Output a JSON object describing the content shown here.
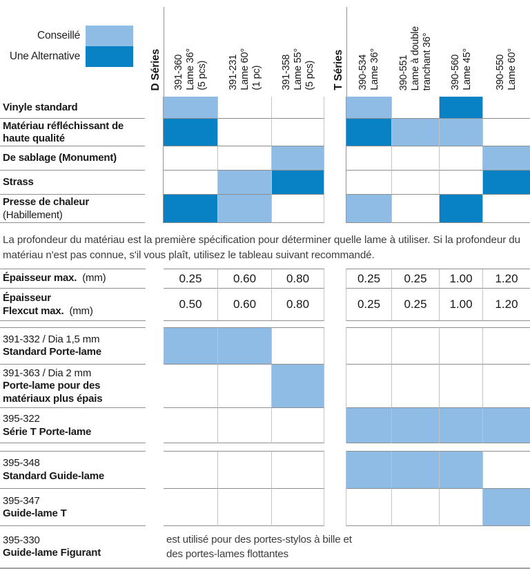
{
  "colors": {
    "recommended": "#8ebce4",
    "alternative": "#0981c5"
  },
  "legend": {
    "recommended_label": "Conseillé",
    "alternative_label": "Une Alternative"
  },
  "columns": {
    "d_series_label": "D Séries",
    "t_series_label": "T Séries",
    "blades": [
      {
        "label": "391-360\nLame 36°\n(5 pcs)"
      },
      {
        "label": "391-231\nLame 60°\n(1 pc)"
      },
      {
        "label": "391-358\nLame 55°\n(5 pcs)"
      },
      {
        "label": "390-534\nLame 36°"
      },
      {
        "label": "390-551\nLame à double\ntranchant 36°"
      },
      {
        "label": "390-560\nLame 45°"
      },
      {
        "label": "390-550\nLame 60°"
      }
    ]
  },
  "materials_table": {
    "rows": [
      {
        "label": "Vinyle standard",
        "sub": "",
        "cells": [
          "recommended",
          "",
          "",
          "recommended",
          "",
          "alternative",
          ""
        ]
      },
      {
        "label": "Matériau réfléchissant de haute qualité",
        "sub": "",
        "cells": [
          "alternative",
          "",
          "",
          "alternative",
          "recommended",
          "recommended",
          ""
        ]
      },
      {
        "label": "De sablage  (Monument)",
        "sub": "",
        "cells": [
          "",
          "",
          "recommended",
          "",
          "",
          "",
          "recommended"
        ]
      },
      {
        "label": "Strass",
        "sub": "",
        "cells": [
          "",
          "recommended",
          "alternative",
          "",
          "",
          "",
          "alternative"
        ]
      },
      {
        "label": "Presse de chaleur",
        "sub": "(Habillement)",
        "cells": [
          "alternative",
          "recommended",
          "",
          "recommended",
          "",
          "alternative",
          ""
        ]
      }
    ]
  },
  "note_paragraph": "La profondeur du matériau est la première spécification pour déterminer quelle lame à utiliser. Si la profondeur du matériau n'est pas connue, s'il vous plaît, utilisez le tableau suivant recommandé.",
  "thickness_table": {
    "rows": [
      {
        "label_bold": "Épaisseur max.",
        "label_unit": "(mm)",
        "values": [
          "0.25",
          "0.60",
          "0.80",
          "0.25",
          "0.25",
          "1.00",
          "1.20"
        ]
      },
      {
        "label_bold_line1": "Épaisseur",
        "label_bold_line2": "Flexcut max.",
        "label_unit": "(mm)",
        "values": [
          "0.50",
          "0.60",
          "0.80",
          "0.25",
          "0.25",
          "1.00",
          "1.20"
        ]
      }
    ]
  },
  "holders_table": {
    "rows": [
      {
        "code": "391-332 / Dia 1,5 mm",
        "name": "Standard Porte-lame",
        "cells": [
          "recommended",
          "recommended",
          "",
          "",
          "",
          "",
          ""
        ]
      },
      {
        "code": "391-363 / Dia 2 mm",
        "name": "Porte-lame pour des matériaux plus épais",
        "cells": [
          "",
          "",
          "recommended",
          "",
          "",
          "",
          ""
        ]
      },
      {
        "code": "395-322",
        "name": "Série T Porte-lame",
        "cells": [
          "",
          "",
          "",
          "recommended",
          "recommended",
          "recommended",
          "recommended"
        ]
      },
      {
        "code": "395-348",
        "name": "Standard Guide-lame",
        "cells": [
          "",
          "",
          "",
          "recommended",
          "recommended",
          "recommended",
          ""
        ]
      },
      {
        "code": "395-347",
        "name": "Guide-lame T",
        "cells": [
          "",
          "",
          "",
          "",
          "",
          "",
          "recommended"
        ]
      },
      {
        "code": "395-330",
        "name": "Guide-lame Figurant",
        "note": "est utilisé pour des portes-stylos à bille et\ndes portes-lames flottantes"
      }
    ]
  }
}
